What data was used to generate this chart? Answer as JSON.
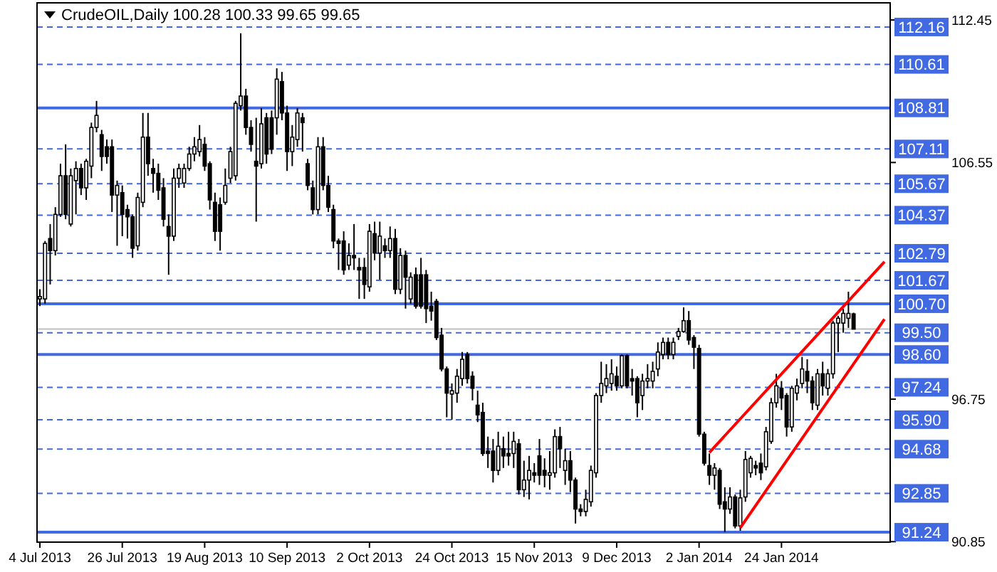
{
  "chart_data": {
    "type": "candlestick",
    "title": "CrudeOIL,Daily  100.28 100.33 99.65 99.65",
    "categories": [
      "4 Jul 2013",
      null,
      null,
      null,
      null,
      null,
      null,
      null,
      null,
      null,
      null,
      null,
      null,
      null,
      null,
      null,
      "26 Jul 2013",
      null,
      null,
      null,
      null,
      null,
      null,
      null,
      null,
      null,
      null,
      null,
      null,
      null,
      null,
      null,
      "19 Aug 2013",
      null,
      null,
      null,
      null,
      null,
      null,
      null,
      null,
      null,
      null,
      null,
      null,
      null,
      null,
      null,
      "10 Sep 2013",
      null,
      null,
      null,
      null,
      null,
      null,
      null,
      null,
      null,
      null,
      null,
      null,
      null,
      null,
      null,
      "2 Oct 2013",
      null,
      null,
      null,
      null,
      null,
      null,
      null,
      null,
      null,
      null,
      null,
      null,
      null,
      null,
      null,
      "24 Oct 2013",
      null,
      null,
      null,
      null,
      null,
      null,
      null,
      null,
      null,
      null,
      null,
      null,
      null,
      null,
      null,
      "15 Nov 2013",
      null,
      null,
      null,
      null,
      null,
      null,
      null,
      null,
      null,
      null,
      null,
      null,
      null,
      null,
      null,
      "9 Dec 2013",
      null,
      null,
      null,
      null,
      null,
      null,
      null,
      null,
      null,
      null,
      null,
      null,
      null,
      null,
      null,
      "2 Jan 2014",
      null,
      null,
      null,
      null,
      null,
      null,
      null,
      null,
      null,
      null,
      null,
      null,
      null,
      null,
      null,
      "24 Jan 2014",
      null,
      null,
      null,
      null,
      null,
      null,
      null,
      null,
      null,
      null,
      null,
      null,
      null,
      null,
      null,
      null,
      null,
      null,
      null,
      null
    ],
    "ohlc": [
      [
        100.9,
        101.3,
        100.6,
        101.0
      ],
      [
        100.9,
        103.3,
        100.7,
        103.2
      ],
      [
        103.4,
        104.0,
        101.5,
        102.9
      ],
      [
        102.9,
        104.7,
        102.7,
        104.4
      ],
      [
        104.4,
        106.5,
        104.3,
        106.0
      ],
      [
        106.0,
        107.3,
        104.2,
        104.4
      ],
      [
        104.0,
        106.3,
        103.9,
        106.0
      ],
      [
        105.8,
        106.6,
        104.4,
        106.3
      ],
      [
        106.3,
        106.5,
        105.2,
        105.5
      ],
      [
        105.5,
        106.7,
        105.0,
        106.6
      ],
      [
        106.4,
        108.2,
        105.9,
        108.0
      ],
      [
        108.0,
        109.1,
        107.8,
        108.5
      ],
      [
        107.7,
        107.9,
        106.2,
        106.8
      ],
      [
        107.2,
        107.5,
        106.5,
        106.8
      ],
      [
        107.2,
        107.5,
        104.5,
        105.2
      ],
      [
        105.2,
        105.8,
        103.1,
        105.6
      ],
      [
        105.3,
        105.6,
        103.5,
        104.4
      ],
      [
        104.6,
        104.8,
        103.4,
        104.3
      ],
      [
        104.3,
        104.4,
        102.6,
        103.0
      ],
      [
        103.1,
        105.3,
        102.9,
        105.1
      ],
      [
        104.9,
        108.6,
        104.7,
        107.6
      ],
      [
        107.6,
        108.6,
        106.0,
        106.5
      ],
      [
        106.3,
        106.7,
        105.3,
        106.1
      ],
      [
        106.1,
        106.5,
        105.0,
        105.4
      ],
      [
        105.5,
        105.9,
        103.9,
        104.2
      ],
      [
        103.9,
        104.4,
        101.9,
        103.5
      ],
      [
        103.5,
        106.3,
        103.3,
        105.9
      ],
      [
        105.9,
        106.5,
        105.5,
        106.3
      ],
      [
        105.7,
        106.5,
        105.5,
        106.3
      ],
      [
        106.3,
        107.2,
        106.2,
        106.9
      ],
      [
        106.9,
        107.6,
        106.6,
        107.2
      ],
      [
        107.0,
        108.1,
        106.8,
        107.5
      ],
      [
        107.3,
        107.6,
        106.2,
        106.4
      ],
      [
        106.5,
        106.6,
        104.6,
        105.0
      ],
      [
        104.9,
        105.3,
        103.3,
        103.7
      ],
      [
        104.8,
        105.1,
        102.9,
        103.7
      ],
      [
        104.9,
        106.3,
        104.8,
        105.6
      ],
      [
        105.9,
        107.2,
        105.7,
        107.0
      ],
      [
        106.0,
        109.1,
        105.8,
        109.0
      ],
      [
        108.9,
        111.9,
        108.7,
        109.3
      ],
      [
        109.3,
        109.6,
        107.7,
        108.0
      ],
      [
        108.0,
        108.3,
        107.0,
        107.3
      ],
      [
        106.6,
        108.4,
        104.1,
        106.4
      ],
      [
        106.5,
        108.8,
        106.3,
        108.15
      ],
      [
        108.4,
        108.6,
        106.5,
        106.9
      ],
      [
        108.4,
        108.7,
        106.9,
        107.1
      ],
      [
        108.4,
        110.45,
        107.7,
        110.0
      ],
      [
        109.9,
        110.3,
        108.3,
        108.6
      ],
      [
        108.6,
        108.9,
        106.2,
        107.0
      ],
      [
        107.0,
        108.1,
        106.4,
        107.6
      ],
      [
        107.5,
        108.8,
        107.2,
        108.6
      ],
      [
        108.4,
        108.6,
        107.0,
        108.2
      ],
      [
        106.5,
        106.7,
        105.4,
        105.6
      ],
      [
        105.5,
        105.8,
        104.4,
        104.6
      ],
      [
        104.6,
        107.6,
        104.4,
        107.2
      ],
      [
        107.2,
        107.6,
        105.4,
        105.6
      ],
      [
        105.6,
        106.0,
        104.5,
        104.7
      ],
      [
        104.6,
        104.8,
        103.0,
        103.3
      ],
      [
        103.3,
        103.4,
        102.1,
        103.2
      ],
      [
        103.3,
        103.7,
        101.9,
        102.1
      ],
      [
        102.3,
        103.2,
        102.1,
        102.7
      ],
      [
        102.7,
        104.0,
        102.1,
        102.6
      ],
      [
        102.2,
        102.6,
        100.9,
        102.1
      ],
      [
        102.2,
        102.6,
        100.9,
        101.5
      ],
      [
        101.4,
        104.0,
        101.2,
        103.7
      ],
      [
        103.6,
        104.1,
        102.5,
        102.8
      ],
      [
        102.8,
        104.1,
        101.7,
        103.5
      ],
      [
        103.1,
        103.4,
        102.6,
        102.9
      ],
      [
        102.9,
        103.9,
        102.6,
        103.4
      ],
      [
        103.4,
        103.8,
        101.1,
        101.3
      ],
      [
        101.3,
        103.0,
        101.1,
        102.7
      ],
      [
        102.7,
        102.9,
        100.5,
        101.8
      ],
      [
        100.9,
        102.0,
        100.7,
        101.8
      ],
      [
        101.9,
        102.2,
        100.5,
        100.6
      ],
      [
        101.9,
        102.6,
        100.5,
        100.6
      ],
      [
        101.9,
        102.1,
        99.9,
        100.5
      ],
      [
        100.6,
        101.2,
        100.0,
        100.4
      ],
      [
        100.8,
        100.9,
        99.2,
        99.3
      ],
      [
        99.4,
        99.7,
        97.9,
        98.0
      ],
      [
        98.0,
        98.1,
        96.0,
        97.0
      ],
      [
        96.96,
        97.4,
        95.9,
        97.1
      ],
      [
        97.0,
        98.0,
        96.6,
        97.7
      ],
      [
        97.6,
        98.7,
        97.3,
        98.4
      ],
      [
        98.6,
        98.7,
        97.4,
        97.6
      ],
      [
        97.7,
        97.9,
        96.7,
        97.2
      ],
      [
        96.5,
        97.1,
        95.8,
        96.1
      ],
      [
        96.2,
        96.6,
        94.4,
        94.5
      ],
      [
        94.6,
        95.2,
        93.9,
        94.5
      ],
      [
        94.6,
        95.1,
        93.3,
        93.8
      ],
      [
        93.8,
        95.4,
        93.6,
        94.8
      ],
      [
        94.7,
        95.2,
        93.9,
        94.4
      ],
      [
        94.5,
        95.4,
        94.0,
        94.4
      ],
      [
        94.5,
        95.4,
        93.9,
        95.0
      ],
      [
        94.9,
        95.1,
        92.8,
        93.0
      ],
      [
        93.0,
        94.2,
        92.7,
        93.4
      ],
      [
        93.4,
        94.4,
        92.6,
        93.8
      ],
      [
        93.7,
        94.1,
        93.3,
        93.6
      ],
      [
        94.4,
        95.1,
        93.2,
        93.6
      ],
      [
        93.8,
        94.3,
        93.1,
        93.6
      ],
      [
        93.6,
        94.6,
        93.0,
        93.7
      ],
      [
        93.7,
        95.5,
        93.5,
        95.2
      ],
      [
        95.2,
        95.6,
        93.9,
        94.7
      ],
      [
        93.8,
        94.7,
        93.2,
        94.2
      ],
      [
        94.2,
        94.6,
        92.9,
        93.4
      ],
      [
        93.4,
        93.5,
        91.6,
        92.2
      ],
      [
        92.2,
        92.4,
        91.9,
        92.1
      ],
      [
        92.1,
        93.0,
        91.9,
        92.6
      ],
      [
        92.5,
        94.0,
        92.3,
        93.8
      ],
      [
        93.7,
        97.0,
        93.5,
        96.9
      ],
      [
        96.9,
        98.3,
        96.6,
        97.4
      ],
      [
        97.3,
        98.2,
        97.0,
        97.6
      ],
      [
        97.4,
        98.4,
        97.1,
        97.8
      ],
      [
        97.7,
        98.1,
        97.1,
        97.3
      ],
      [
        97.3,
        98.6,
        97.2,
        98.55
      ],
      [
        98.55,
        98.6,
        97.2,
        97.3
      ],
      [
        97.6,
        98.0,
        96.9,
        97.5
      ],
      [
        97.6,
        97.7,
        96.0,
        96.6
      ],
      [
        96.9,
        97.8,
        96.3,
        97.5
      ],
      [
        97.5,
        98.2,
        97.2,
        97.6
      ],
      [
        97.5,
        98.3,
        97.2,
        97.9
      ],
      [
        98.0,
        99.1,
        97.7,
        98.7
      ],
      [
        98.6,
        99.3,
        98.4,
        99.1
      ],
      [
        99.1,
        99.3,
        98.4,
        98.6
      ],
      [
        98.6,
        99.3,
        98.4,
        99.1
      ],
      [
        99.35,
        99.7,
        99.2,
        99.55
      ],
      [
        99.55,
        100.55,
        99.5,
        100.0
      ],
      [
        100.0,
        100.4,
        99.0,
        99.2
      ],
      [
        99.3,
        99.4,
        98.0,
        98.9
      ],
      [
        98.85,
        99.0,
        95.2,
        95.3
      ],
      [
        95.3,
        95.4,
        94.0,
        94.1
      ],
      [
        94.0,
        94.5,
        93.2,
        93.6
      ],
      [
        93.6,
        94.1,
        93.0,
        93.9
      ],
      [
        93.8,
        93.9,
        92.2,
        92.4
      ],
      [
        92.5,
        93.1,
        91.25,
        92.2
      ],
      [
        92.2,
        93.1,
        92.0,
        92.7
      ],
      [
        92.7,
        92.8,
        91.4,
        91.5
      ],
      [
        91.5,
        93.0,
        91.3,
        92.66
      ],
      [
        92.7,
        94.6,
        92.5,
        94.25
      ],
      [
        93.7,
        94.4,
        93.5,
        94.3
      ],
      [
        94.0,
        94.2,
        93.6,
        93.9
      ],
      [
        94.1,
        94.5,
        93.4,
        93.7
      ],
      [
        93.95,
        95.6,
        93.8,
        95.4
      ],
      [
        95.0,
        96.8,
        94.9,
        96.6
      ],
      [
        96.6,
        97.8,
        96.4,
        97.3
      ],
      [
        97.2,
        97.5,
        96.3,
        96.8
      ],
      [
        96.9,
        97.0,
        95.2,
        95.6
      ],
      [
        95.6,
        97.3,
        95.4,
        97.2
      ],
      [
        97.0,
        97.6,
        96.7,
        97.3
      ],
      [
        97.4,
        98.5,
        97.2,
        98.0
      ],
      [
        97.9,
        98.4,
        97.0,
        97.5
      ],
      [
        97.5,
        97.7,
        96.3,
        96.6
      ],
      [
        96.5,
        98.0,
        96.3,
        97.8
      ],
      [
        97.8,
        98.3,
        96.9,
        97.3
      ],
      [
        97.2,
        98.0,
        96.9,
        97.8
      ],
      [
        97.8,
        100.0,
        97.6,
        99.9
      ],
      [
        99.9,
        100.2,
        98.7,
        100.1
      ],
      [
        99.9,
        100.5,
        99.5,
        100.3
      ],
      [
        100.1,
        101.2,
        99.7,
        100.3
      ],
      [
        100.28,
        100.33,
        99.65,
        99.65
      ],
      null,
      null,
      null,
      null,
      null,
      null
    ],
    "series": [
      {
        "type": "line",
        "color": "#ff0000",
        "values": [
          null,
          null,
          null,
          null,
          null,
          null,
          null,
          null,
          null,
          null,
          null,
          null,
          null,
          null,
          null,
          null,
          null,
          null,
          null,
          null,
          null,
          null,
          null,
          null,
          null,
          null,
          null,
          null,
          null,
          null,
          null,
          null,
          null,
          null,
          null,
          null,
          null,
          null,
          null,
          null,
          null,
          null,
          null,
          null,
          null,
          null,
          null,
          null,
          null,
          null,
          null,
          null,
          null,
          null,
          null,
          null,
          null,
          null,
          null,
          null,
          null,
          null,
          null,
          null,
          null,
          null,
          null,
          null,
          null,
          null,
          null,
          null,
          null,
          null,
          null,
          null,
          null,
          null,
          null,
          null,
          null,
          null,
          null,
          null,
          null,
          null,
          null,
          null,
          null,
          null,
          null,
          null,
          null,
          null,
          null,
          null,
          null,
          null,
          null,
          null,
          null,
          null,
          null,
          null,
          null,
          null,
          null,
          null,
          null,
          null,
          null,
          null,
          null,
          null,
          null,
          null,
          null,
          null,
          null,
          null,
          null,
          null,
          null,
          null,
          null,
          null,
          null,
          null,
          null,
          null,
          94.54,
          null,
          null,
          null,
          null,
          null,
          null,
          null,
          null,
          null,
          null,
          null,
          null,
          null,
          null,
          null,
          null,
          null,
          null,
          null,
          null,
          null,
          null,
          null,
          null,
          null,
          null,
          null,
          null,
          null,
          null,
          null,
          null,
          null,
          102.44
        ]
      },
      {
        "type": "line",
        "color": "#ff0000",
        "values": [
          null,
          null,
          null,
          null,
          null,
          null,
          null,
          null,
          null,
          null,
          null,
          null,
          null,
          null,
          null,
          null,
          null,
          null,
          null,
          null,
          null,
          null,
          null,
          null,
          null,
          null,
          null,
          null,
          null,
          null,
          null,
          null,
          null,
          null,
          null,
          null,
          null,
          null,
          null,
          null,
          null,
          null,
          null,
          null,
          null,
          null,
          null,
          null,
          null,
          null,
          null,
          null,
          null,
          null,
          null,
          null,
          null,
          null,
          null,
          null,
          null,
          null,
          null,
          null,
          null,
          null,
          null,
          null,
          null,
          null,
          null,
          null,
          null,
          null,
          null,
          null,
          null,
          null,
          null,
          null,
          null,
          null,
          null,
          null,
          null,
          null,
          null,
          null,
          null,
          null,
          null,
          null,
          null,
          null,
          null,
          null,
          null,
          null,
          null,
          null,
          null,
          null,
          null,
          null,
          null,
          null,
          null,
          null,
          null,
          null,
          null,
          null,
          null,
          null,
          null,
          null,
          null,
          null,
          null,
          null,
          null,
          null,
          null,
          null,
          null,
          null,
          null,
          null,
          null,
          null,
          null,
          null,
          null,
          null,
          null,
          null,
          91.42,
          null,
          null,
          null,
          null,
          null,
          null,
          null,
          null,
          null,
          null,
          null,
          null,
          null,
          null,
          null,
          null,
          null,
          null,
          null,
          null,
          null,
          null,
          null,
          null,
          null,
          null,
          null,
          100.06
        ]
      }
    ],
    "ylim": [
      90.83,
      113.16
    ],
    "yticks": [
      90.85,
      96.75,
      106.55,
      112.45
    ],
    "grid": false,
    "ref_lines": [
      {
        "axis": "y",
        "value": 112.16,
        "label": "112.16",
        "color": "#4169e1",
        "line_style": "dashed"
      },
      {
        "axis": "y",
        "value": 110.61,
        "label": "110.61",
        "color": "#4169e1",
        "line_style": "dashed"
      },
      {
        "axis": "y",
        "value": 108.81,
        "label": "108.81",
        "color": "#4169e1",
        "line_style": "solid"
      },
      {
        "axis": "y",
        "value": 107.11,
        "label": "107.11",
        "color": "#4169e1",
        "line_style": "dashed"
      },
      {
        "axis": "y",
        "value": 105.67,
        "label": "105.67",
        "color": "#4169e1",
        "line_style": "dashed"
      },
      {
        "axis": "y",
        "value": 104.37,
        "label": "104.37",
        "color": "#4169e1",
        "line_style": "dashed"
      },
      {
        "axis": "y",
        "value": 102.79,
        "label": "102.79",
        "color": "#4169e1",
        "line_style": "dashed"
      },
      {
        "axis": "y",
        "value": 101.67,
        "label": "101.67",
        "color": "#4169e1",
        "line_style": "dashed"
      },
      {
        "axis": "y",
        "value": 100.7,
        "label": "100.70",
        "color": "#4169e1",
        "line_style": "solid"
      },
      {
        "axis": "y",
        "value": 99.5,
        "label": "99.50",
        "color": "#4169e1",
        "line_style": "dashed"
      },
      {
        "axis": "y",
        "value": 98.6,
        "label": "98.60",
        "color": "#4169e1",
        "line_style": "solid"
      },
      {
        "axis": "y",
        "value": 97.24,
        "label": "97.24",
        "color": "#4169e1",
        "line_style": "dashed"
      },
      {
        "axis": "y",
        "value": 95.9,
        "label": "95.90",
        "color": "#4169e1",
        "line_style": "dashed"
      },
      {
        "axis": "y",
        "value": 94.68,
        "label": "94.68",
        "color": "#4169e1",
        "line_style": "dashed"
      },
      {
        "axis": "y",
        "value": 92.85,
        "label": "92.85",
        "color": "#4169e1",
        "line_style": "dashed"
      },
      {
        "axis": "y",
        "value": 91.24,
        "label": "91.24",
        "color": "#4169e1",
        "line_style": "solid"
      },
      {
        "axis": "y",
        "value": 99.65,
        "label": null,
        "color": "#c0c0c0",
        "line_style": "solid"
      }
    ]
  }
}
